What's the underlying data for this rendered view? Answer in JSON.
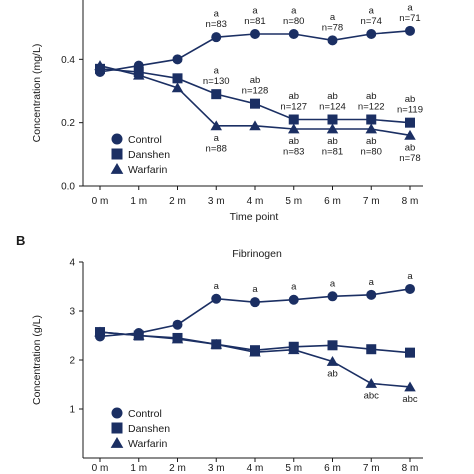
{
  "chart_data": [
    {
      "type": "line",
      "title": "",
      "xlabel": "Time point",
      "ylabel": "Concentration (mg/L)",
      "ylim": [
        0,
        0.6
      ],
      "yticks": [
        "0.0",
        "0.2",
        "0.4"
      ],
      "categories": [
        "0 m",
        "1 m",
        "2 m",
        "3 m",
        "4 m",
        "5 m",
        "6 m",
        "7 m",
        "8 m"
      ],
      "legend_position": "bottom-left",
      "series": [
        {
          "name": "Control",
          "marker": "circle",
          "values": [
            0.36,
            0.38,
            0.4,
            0.47,
            0.48,
            0.48,
            0.46,
            0.48,
            0.49
          ]
        },
        {
          "name": "Danshen",
          "marker": "square",
          "values": [
            0.37,
            0.36,
            0.34,
            0.29,
            0.26,
            0.21,
            0.21,
            0.21,
            0.2
          ]
        },
        {
          "name": "Warfarin",
          "marker": "triangle",
          "values": [
            0.38,
            0.35,
            0.31,
            0.19,
            0.19,
            0.18,
            0.18,
            0.18,
            0.16
          ]
        }
      ],
      "annotations": [
        {
          "x": "3 m",
          "y": 0.47,
          "lines": [
            "a",
            "n=83"
          ]
        },
        {
          "x": "4 m",
          "y": 0.48,
          "lines": [
            "a",
            "n=81"
          ]
        },
        {
          "x": "5 m",
          "y": 0.48,
          "lines": [
            "a",
            "n=80"
          ]
        },
        {
          "x": "6 m",
          "y": 0.46,
          "lines": [
            "a",
            "n=78"
          ]
        },
        {
          "x": "7 m",
          "y": 0.48,
          "lines": [
            "a",
            "n=74"
          ]
        },
        {
          "x": "8 m",
          "y": 0.49,
          "lines": [
            "a",
            "n=71"
          ]
        },
        {
          "x": "3 m",
          "y": 0.29,
          "lines": [
            "a",
            "n=130"
          ]
        },
        {
          "x": "4 m",
          "y": 0.26,
          "lines": [
            "ab",
            "n=128"
          ]
        },
        {
          "x": "5 m",
          "y": 0.21,
          "lines": [
            "ab",
            "n=127"
          ]
        },
        {
          "x": "6 m",
          "y": 0.21,
          "lines": [
            "ab",
            "n=124"
          ]
        },
        {
          "x": "7 m",
          "y": 0.21,
          "lines": [
            "ab",
            "n=122"
          ]
        },
        {
          "x": "8 m",
          "y": 0.2,
          "lines": [
            "ab",
            "n=119"
          ]
        },
        {
          "x": "3 m",
          "y": 0.19,
          "lines": [
            "a",
            "n=88"
          ],
          "below": true
        },
        {
          "x": "5 m",
          "y": 0.18,
          "lines": [
            "ab",
            "n=83"
          ],
          "below": true
        },
        {
          "x": "6 m",
          "y": 0.18,
          "lines": [
            "ab",
            "n=81"
          ],
          "below": true
        },
        {
          "x": "7 m",
          "y": 0.18,
          "lines": [
            "ab",
            "n=80"
          ],
          "below": true
        },
        {
          "x": "8 m",
          "y": 0.16,
          "lines": [
            "ab",
            "n=78"
          ],
          "below": true
        }
      ]
    },
    {
      "type": "line",
      "panel_label": "B",
      "title": "Fibrinogen",
      "xlabel": "",
      "ylabel": "Concentration (g/L)",
      "ylim": [
        0,
        4
      ],
      "yticks": [
        "1",
        "2",
        "3",
        "4"
      ],
      "categories": [
        "0 m",
        "1 m",
        "2 m",
        "3 m",
        "4 m",
        "5 m",
        "6 m",
        "7 m",
        "8 m"
      ],
      "legend_position": "bottom-left",
      "series": [
        {
          "name": "Control",
          "marker": "circle",
          "values": [
            2.48,
            2.55,
            2.72,
            3.25,
            3.18,
            3.23,
            3.3,
            3.33,
            3.45
          ]
        },
        {
          "name": "Danshen",
          "marker": "square",
          "values": [
            2.57,
            2.5,
            2.45,
            2.32,
            2.2,
            2.27,
            2.3,
            2.22,
            2.15
          ]
        },
        {
          "name": "Warfarin",
          "marker": "triangle",
          "values": [
            2.57,
            2.5,
            2.43,
            2.32,
            2.16,
            2.21,
            1.97,
            1.52,
            1.45
          ]
        }
      ],
      "annotations": [
        {
          "x": "3 m",
          "y": 3.25,
          "lines": [
            "a"
          ]
        },
        {
          "x": "4 m",
          "y": 3.18,
          "lines": [
            "a"
          ]
        },
        {
          "x": "5 m",
          "y": 3.23,
          "lines": [
            "a"
          ]
        },
        {
          "x": "6 m",
          "y": 3.3,
          "lines": [
            "a"
          ]
        },
        {
          "x": "7 m",
          "y": 3.33,
          "lines": [
            "a"
          ]
        },
        {
          "x": "8 m",
          "y": 3.45,
          "lines": [
            "a"
          ]
        },
        {
          "x": "6 m",
          "y": 1.97,
          "lines": [
            "ab"
          ],
          "below": true
        },
        {
          "x": "7 m",
          "y": 1.52,
          "lines": [
            "abc"
          ],
          "below": true
        },
        {
          "x": "8 m",
          "y": 1.45,
          "lines": [
            "abc"
          ],
          "below": true
        }
      ]
    }
  ],
  "colors": {
    "ink": "#1b2f63",
    "axis": "#1a1a1a",
    "text": "#1a1a1a"
  }
}
